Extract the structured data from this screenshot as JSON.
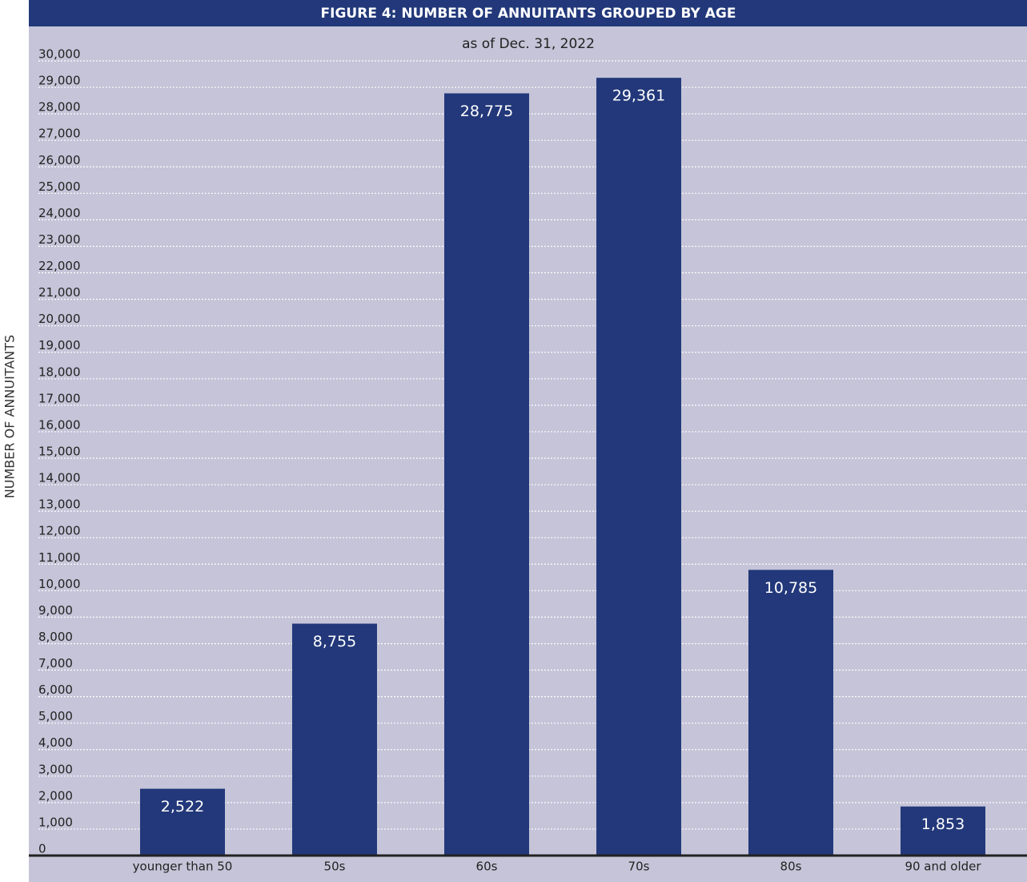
{
  "chart_data": {
    "type": "bar",
    "title": "FIGURE 4: NUMBER OF ANNUITANTS GROUPED BY AGE",
    "subtitle": "as of Dec. 31, 2022",
    "y_label": "NUMBER OF ANNUITANTS",
    "categories": [
      "younger than 50",
      "50s",
      "60s",
      "70s",
      "80s",
      "90 and older"
    ],
    "values": [
      2522,
      8755,
      28775,
      29361,
      10785,
      1853
    ],
    "value_labels": [
      "2,522",
      "8,755",
      "28,775",
      "29,361",
      "10,785",
      "1,853"
    ],
    "color": "#22387a",
    "ylim": [
      0,
      30000
    ],
    "yticks": [
      0,
      {
        "value": 1000,
        "label": "1,000"
      },
      {
        "value": 2000,
        "label": "2,000"
      },
      {
        "value": 3000,
        "label": "3,000"
      },
      {
        "value": 4000,
        "label": "4,000"
      },
      {
        "value": 5000,
        "label": "5,000"
      },
      {
        "value": 6000,
        "label": "6,000"
      },
      {
        "value": 7000,
        "label": "7,000"
      },
      {
        "value": 8000,
        "label": "8,000"
      },
      {
        "value": 9000,
        "label": "9,000"
      },
      {
        "value": 10000,
        "label": "10,000"
      },
      {
        "value": 11000,
        "label": "11,000"
      },
      {
        "value": 12000,
        "label": "12,000"
      },
      {
        "value": 13000,
        "label": "13,000"
      },
      {
        "value": 14000,
        "label": "14,000"
      },
      {
        "value": 15000,
        "label": "15,000"
      },
      {
        "value": 16000,
        "label": "16,000"
      },
      {
        "value": 17000,
        "label": "17,000"
      },
      {
        "value": 18000,
        "label": "18,000"
      },
      {
        "value": 19000,
        "label": "19,000"
      },
      {
        "value": 20000,
        "label": "20,000"
      },
      {
        "value": 21000,
        "label": "21,000"
      },
      {
        "value": 22000,
        "label": "22,000"
      },
      {
        "value": 23000,
        "label": "23,000"
      },
      {
        "value": 24000,
        "label": "24,000"
      },
      {
        "value": 25000,
        "label": "25,000"
      },
      {
        "value": 26000,
        "label": "26,000"
      },
      {
        "value": 27000,
        "label": "27,000"
      },
      {
        "value": 28000,
        "label": "28,000"
      },
      {
        "value": 29000,
        "label": "29,000"
      },
      {
        "value": 30000,
        "label": "30,000"
      }
    ],
    "grid": true
  }
}
